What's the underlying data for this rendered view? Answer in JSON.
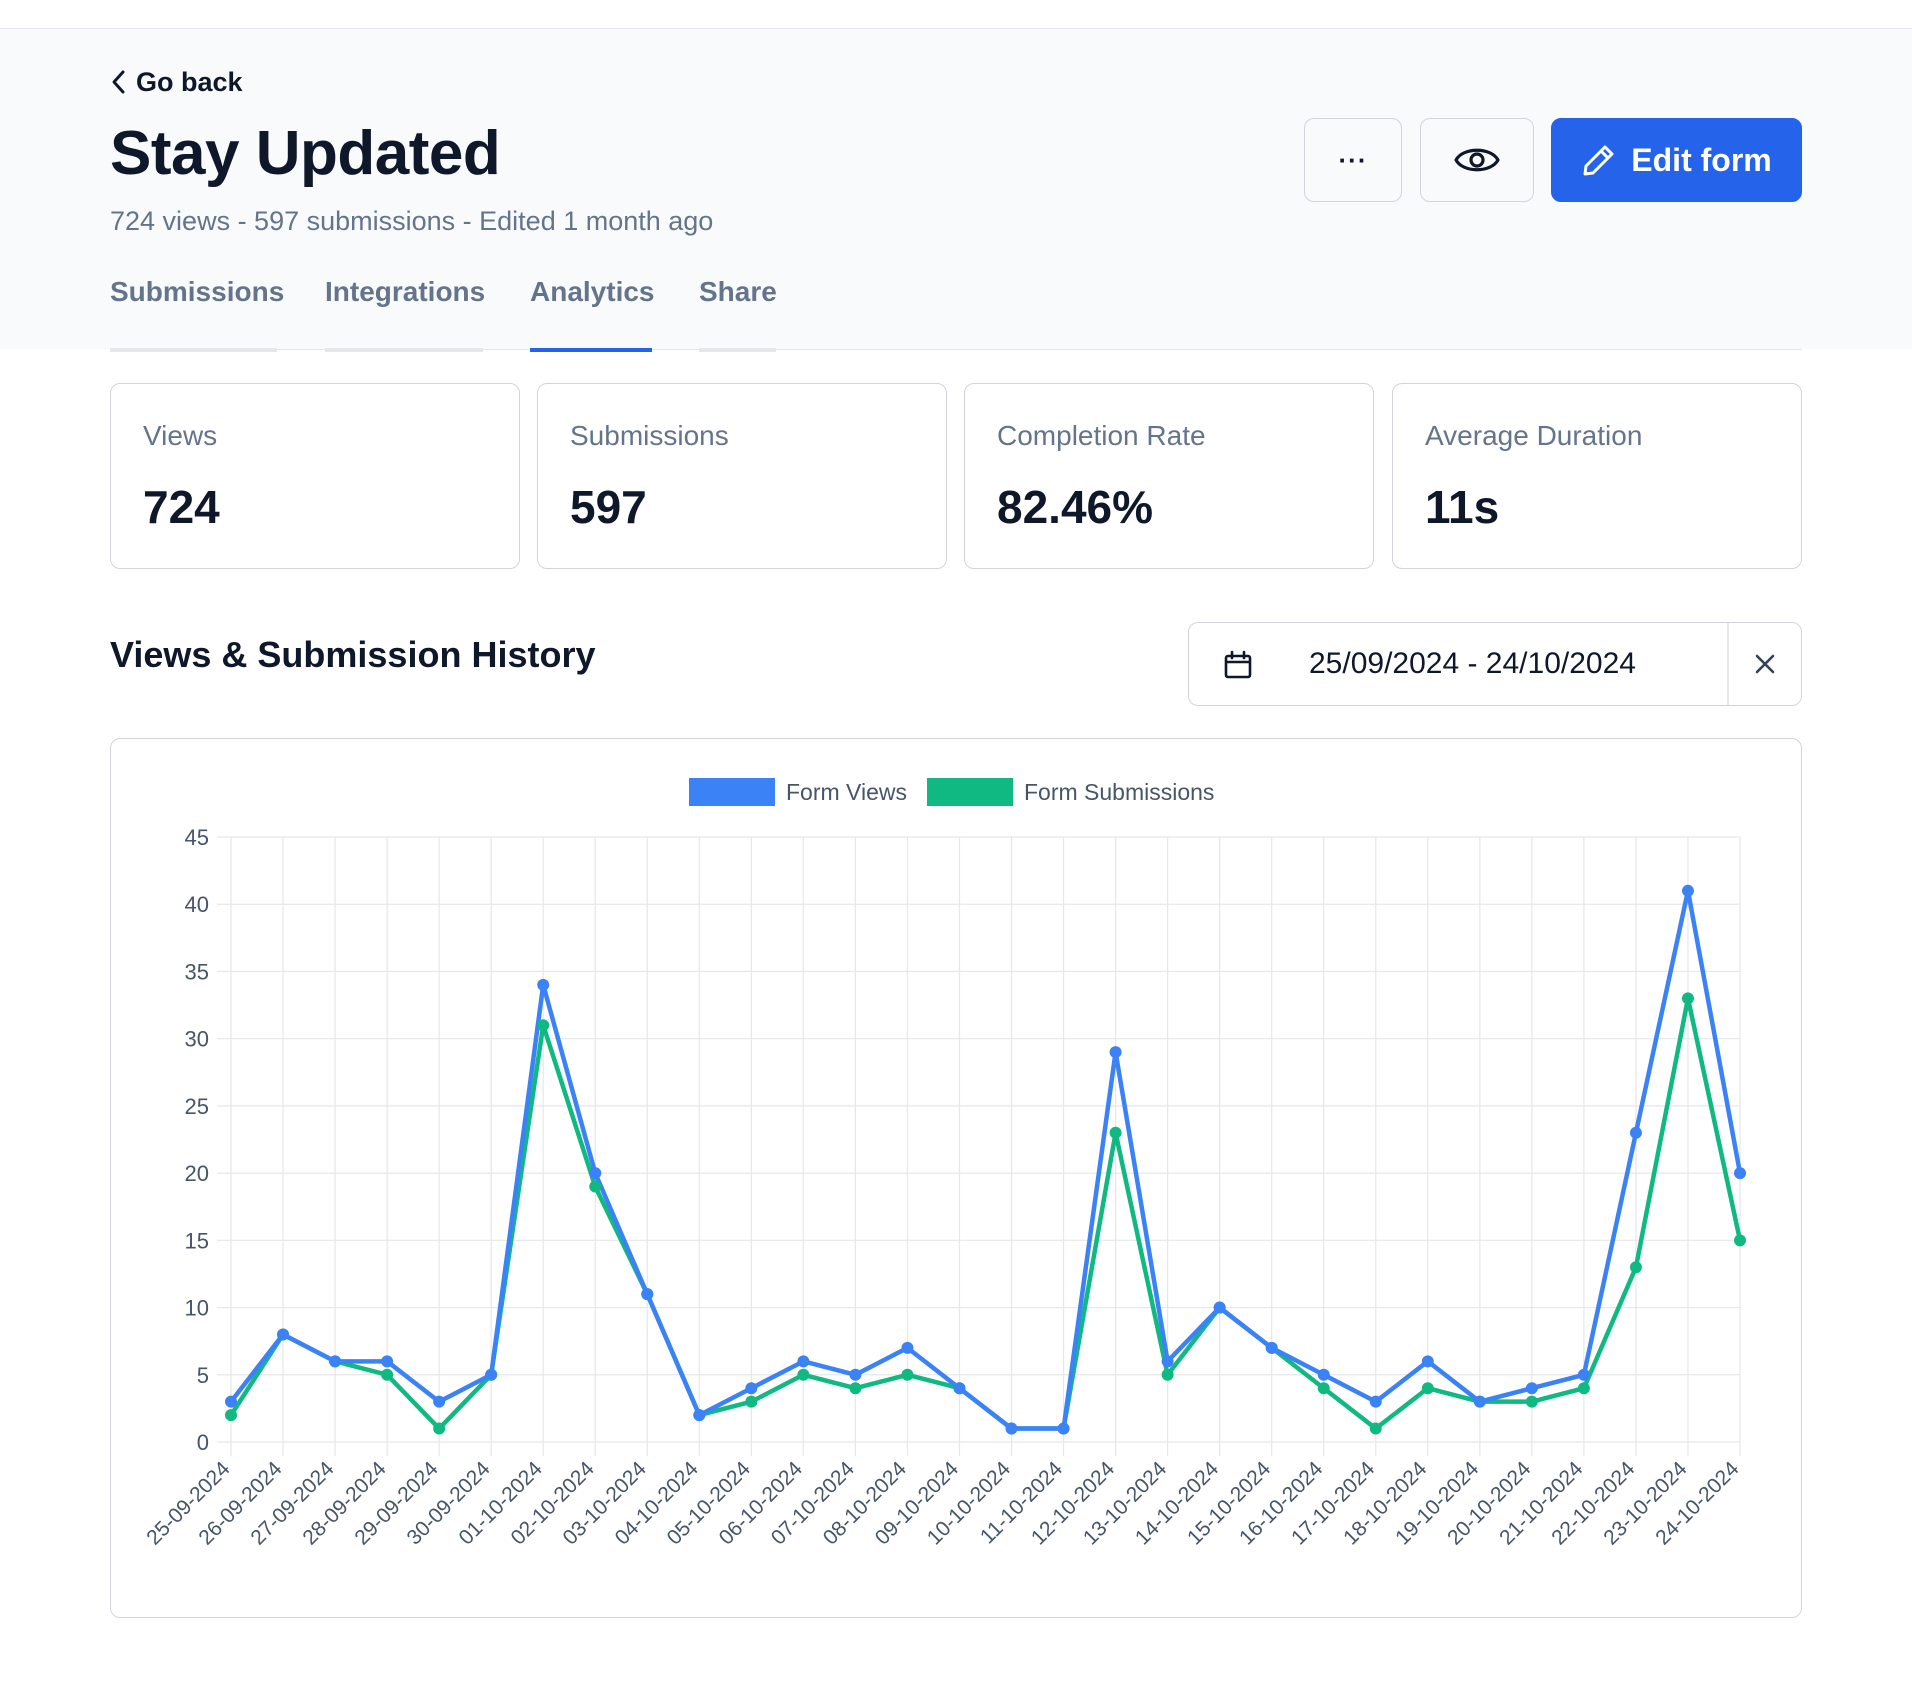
{
  "header": {
    "back_label": "Go back",
    "title": "Stay Updated",
    "subtitle": "724 views - 597 submissions - Edited 1 month ago",
    "more_label": "···",
    "edit_label": "Edit form"
  },
  "tabs": [
    {
      "label": "Submissions",
      "active": false
    },
    {
      "label": "Integrations",
      "active": false
    },
    {
      "label": "Analytics",
      "active": true
    },
    {
      "label": "Share",
      "active": false
    }
  ],
  "stats": [
    {
      "label": "Views",
      "value": "724"
    },
    {
      "label": "Submissions",
      "value": "597"
    },
    {
      "label": "Completion Rate",
      "value": "82.46%"
    },
    {
      "label": "Average Duration",
      "value": "11s"
    }
  ],
  "history": {
    "title": "Views & Submission History",
    "date_range": "25/09/2024 - 24/10/2024"
  },
  "colors": {
    "accent": "#2563eb",
    "views": "#3b82f6",
    "submissions": "#10b981"
  },
  "chart_data": {
    "type": "line",
    "title": "",
    "xlabel": "",
    "ylabel": "",
    "ylim": [
      0,
      45
    ],
    "yticks": [
      0,
      5,
      10,
      15,
      20,
      25,
      30,
      35,
      40,
      45
    ],
    "grid": true,
    "legend_position": "top-center",
    "categories": [
      "25-09-2024",
      "26-09-2024",
      "27-09-2024",
      "28-09-2024",
      "29-09-2024",
      "30-09-2024",
      "01-10-2024",
      "02-10-2024",
      "03-10-2024",
      "04-10-2024",
      "05-10-2024",
      "06-10-2024",
      "07-10-2024",
      "08-10-2024",
      "09-10-2024",
      "10-10-2024",
      "11-10-2024",
      "12-10-2024",
      "13-10-2024",
      "14-10-2024",
      "15-10-2024",
      "16-10-2024",
      "17-10-2024",
      "18-10-2024",
      "19-10-2024",
      "20-10-2024",
      "21-10-2024",
      "22-10-2024",
      "23-10-2024",
      "24-10-2024"
    ],
    "series": [
      {
        "name": "Form Views",
        "color": "#3b82f6",
        "values": [
          3,
          8,
          6,
          6,
          3,
          5,
          34,
          20,
          11,
          2,
          4,
          6,
          5,
          7,
          4,
          1,
          1,
          29,
          6,
          10,
          7,
          5,
          3,
          6,
          3,
          4,
          5,
          23,
          41,
          20
        ]
      },
      {
        "name": "Form Submissions",
        "color": "#10b981",
        "values": [
          2,
          8,
          6,
          5,
          1,
          5,
          31,
          19,
          11,
          2,
          3,
          5,
          4,
          5,
          4,
          1,
          1,
          23,
          5,
          10,
          7,
          4,
          1,
          4,
          3,
          3,
          4,
          13,
          33,
          15
        ]
      }
    ]
  }
}
